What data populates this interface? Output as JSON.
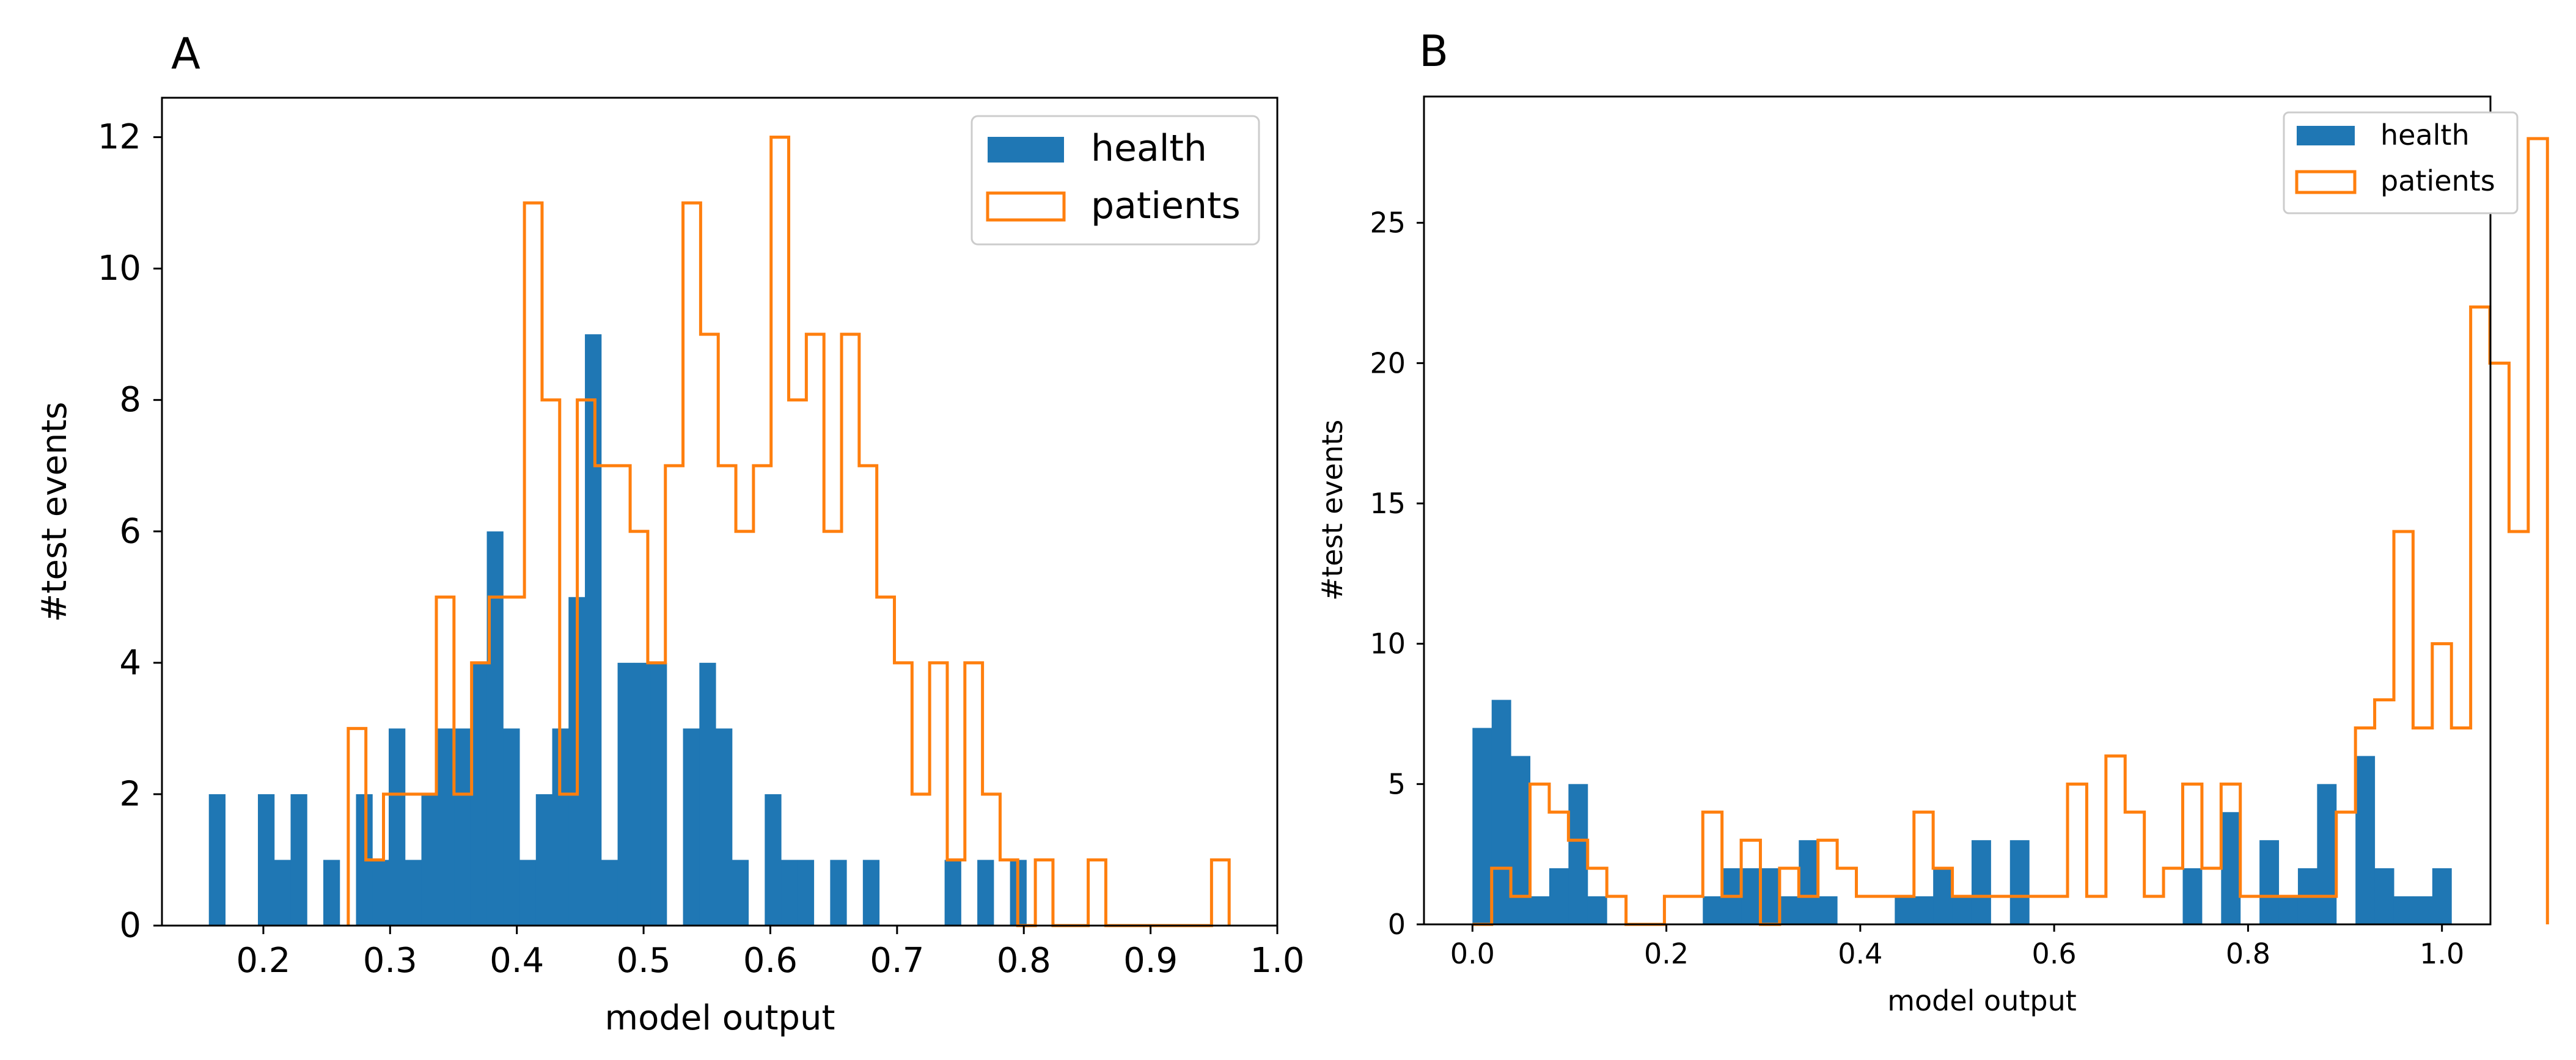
{
  "chart_data": [
    {
      "type": "histogram",
      "panel_label": "A",
      "xlabel": "model output",
      "ylabel": "#test events",
      "xlim": [
        0.12,
        1.0
      ],
      "ylim": [
        0,
        12.6
      ],
      "xticks": [
        "0.2",
        "0.3",
        "0.4",
        "0.5",
        "0.6",
        "0.7",
        "0.8",
        "0.9",
        "1.0"
      ],
      "yticks": [
        "0",
        "2",
        "4",
        "6",
        "8",
        "10",
        "12"
      ],
      "legend": {
        "position": "top-right",
        "entries": [
          "health",
          "patients"
        ]
      },
      "series": [
        {
          "name": "health",
          "style": "filled",
          "color": "#1f77b4",
          "bin_start": 0.157,
          "bin_width": 0.0129,
          "values": [
            2,
            0,
            0,
            2,
            1,
            2,
            0,
            1,
            0,
            2,
            1,
            3,
            1,
            2,
            3,
            3,
            4,
            6,
            3,
            1,
            2,
            3,
            5,
            9,
            1,
            4,
            4,
            4,
            0,
            3,
            4,
            3,
            1,
            0,
            2,
            1,
            1,
            0,
            1,
            0,
            1,
            0,
            0,
            0,
            0,
            1,
            0,
            1,
            0,
            1
          ]
        },
        {
          "name": "patients",
          "style": "step",
          "color": "#ff7f0e",
          "bin_start": 0.267,
          "bin_width": 0.0139,
          "values": [
            3,
            1,
            2,
            2,
            2,
            5,
            2,
            4,
            5,
            5,
            11,
            8,
            2,
            8,
            7,
            7,
            6,
            4,
            7,
            11,
            9,
            7,
            6,
            7,
            12,
            8,
            9,
            6,
            9,
            7,
            5,
            4,
            2,
            4,
            1,
            4,
            2,
            1,
            0,
            1,
            0,
            0,
            1,
            0,
            0,
            0,
            0,
            0,
            0,
            1
          ]
        }
      ]
    },
    {
      "type": "histogram",
      "panel_label": "B",
      "xlabel": "model output",
      "ylabel": "#test events",
      "xlim": [
        -0.05,
        1.05
      ],
      "ylim": [
        0,
        29.5
      ],
      "xticks": [
        "0.0",
        "0.2",
        "0.4",
        "0.6",
        "0.8",
        "1.0"
      ],
      "yticks": [
        "0",
        "5",
        "10",
        "15",
        "20",
        "25"
      ],
      "legend": {
        "position": "top-right",
        "entries": [
          "health",
          "patients"
        ]
      },
      "series": [
        {
          "name": "health",
          "style": "filled",
          "color": "#1f77b4",
          "bin_start": 0.0,
          "bin_width": 0.0198,
          "values": [
            7,
            8,
            6,
            1,
            2,
            5,
            1,
            0,
            0,
            0,
            0,
            0,
            1,
            2,
            2,
            2,
            1,
            3,
            1,
            0,
            0,
            0,
            1,
            1,
            2,
            1,
            3,
            0,
            3,
            0,
            0,
            0,
            0,
            0,
            0,
            0,
            0,
            2,
            0,
            4,
            0,
            3,
            1,
            2,
            5,
            0,
            6,
            2,
            1,
            1,
            2
          ]
        },
        {
          "name": "patients",
          "style": "step",
          "color": "#ff7f0e",
          "bin_start": 0.0,
          "bin_width": 0.0198,
          "values": [
            0,
            2,
            1,
            5,
            4,
            3,
            2,
            1,
            0,
            0,
            1,
            1,
            4,
            1,
            3,
            0,
            2,
            1,
            3,
            2,
            1,
            1,
            1,
            4,
            2,
            1,
            1,
            1,
            1,
            1,
            1,
            5,
            1,
            6,
            4,
            1,
            2,
            5,
            2,
            5,
            1,
            1,
            1,
            1,
            1,
            4,
            7,
            8,
            14,
            7,
            10,
            7,
            22,
            20,
            14,
            28
          ]
        }
      ]
    }
  ]
}
